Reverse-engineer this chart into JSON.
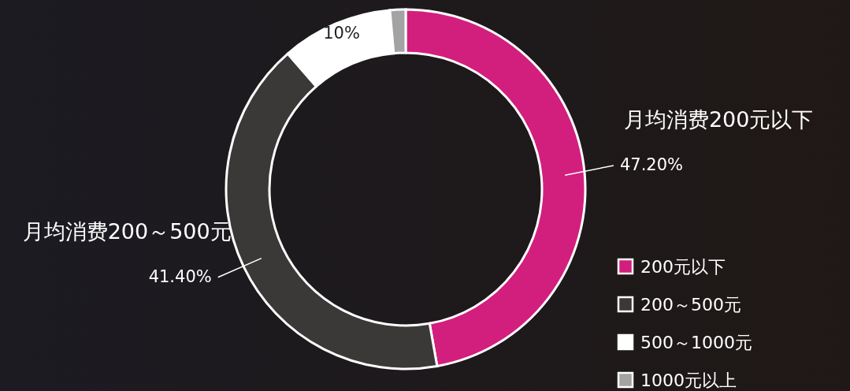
{
  "chart_data": {
    "type": "donut",
    "categories": [
      "200元以下",
      "200～500元",
      "500～1000元",
      "1000元以上"
    ],
    "values": [
      47.2,
      41.4,
      10,
      1.4
    ],
    "colors": [
      "#d21f7e",
      "#3a3937",
      "#ffffff",
      "#a3a3a3"
    ],
    "value_labels": [
      "47.20%",
      "41.40%",
      "10%",
      null
    ],
    "annotations": [
      "月均消费200元以下",
      "月均消费200～500元"
    ],
    "legend": "bottom right"
  }
}
